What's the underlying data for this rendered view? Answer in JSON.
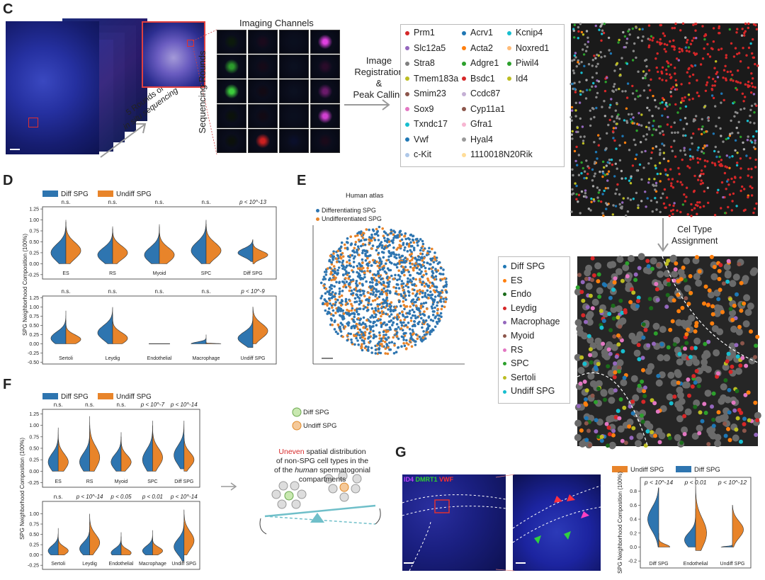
{
  "panel_labels": {
    "c": "C",
    "d": "D",
    "e": "E",
    "f": "F",
    "g": "G"
  },
  "panel_c": {
    "imaging_title": "Imaging Channels",
    "seq_rounds": "Sequencing Rounds",
    "rounds_line1": "5 Rounds of",
    "rounds_line2": "in situ sequencing",
    "reg_line1": "Image",
    "reg_line2": "Registration",
    "reg_line3": "&",
    "reg_line4": "Peak Calling",
    "grid_colors": [
      [
        "#0c1a0c",
        "#1a0a1c",
        "#0a0f1e",
        "#e040e0"
      ],
      [
        "#2c9a2c",
        "#150a18",
        "#0b1020",
        "#2a0c2a"
      ],
      [
        "#3ccc3c",
        "#120a14",
        "#0b1020",
        "#6a1a6a"
      ],
      [
        "#0b120b",
        "#120a14",
        "#0a0f1e",
        "#d040d0"
      ],
      [
        "#0b100b",
        "#cc2020",
        "#0a0f2a",
        "#1a0a1a"
      ]
    ],
    "genes_col1": [
      {
        "name": "Prm1",
        "color": "#d62728"
      },
      {
        "name": "Slc12a5",
        "color": "#9467bd"
      },
      {
        "name": "Stra8",
        "color": "#7f7f7f"
      },
      {
        "name": "Tmem183a",
        "color": "#bcbd22"
      },
      {
        "name": "Smim23",
        "color": "#8c564b"
      },
      {
        "name": "Sox9",
        "color": "#e377c2"
      },
      {
        "name": "Txndc17",
        "color": "#17becf"
      },
      {
        "name": "Vwf",
        "color": "#1f77b4"
      },
      {
        "name": "c-Kit",
        "color": "#aec7e8"
      }
    ],
    "genes_col2": [
      {
        "name": "Acrv1",
        "color": "#1f77b4"
      },
      {
        "name": "Acta2",
        "color": "#ff7f0e"
      },
      {
        "name": "Adgre1",
        "color": "#2ca02c"
      },
      {
        "name": "Bsdc1",
        "color": "#d62728"
      },
      {
        "name": "Ccdc87",
        "color": "#c5b0d5"
      },
      {
        "name": "Cyp11a1",
        "color": "#8c564b"
      },
      {
        "name": "Gfra1",
        "color": "#f7b6d2"
      },
      {
        "name": "Hyal4",
        "color": "#999999"
      },
      {
        "name": "1110018N20Rik",
        "color": "#ffdd99"
      }
    ],
    "genes_col3": [
      {
        "name": "Kcnip4",
        "color": "#17becf"
      },
      {
        "name": "Noxred1",
        "color": "#ffbb78"
      },
      {
        "name": "Piwil4",
        "color": "#2ca02c"
      },
      {
        "name": "Id4",
        "color": "#bcbd22"
      }
    ],
    "celltype_step1": "Cel Type",
    "celltype_step2": "Assignment",
    "celltypes": [
      {
        "name": "Diff SPG",
        "color": "#1f77b4"
      },
      {
        "name": "ES",
        "color": "#ff7f0e"
      },
      {
        "name": "Endo",
        "color": "#1a6b1a"
      },
      {
        "name": "Leydig",
        "color": "#d62728"
      },
      {
        "name": "Macrophage",
        "color": "#9467bd"
      },
      {
        "name": "Myoid",
        "color": "#8c564b"
      },
      {
        "name": "RS",
        "color": "#e377c2"
      },
      {
        "name": "SPC",
        "color": "#2ca02c"
      },
      {
        "name": "Sertoli",
        "color": "#bcbd22"
      },
      {
        "name": "Undiff SPG",
        "color": "#17becf"
      }
    ]
  },
  "colors": {
    "diff": "#2e75b0",
    "undiff": "#e8842a"
  },
  "panel_d": {
    "legend_diff": "Diff SPG",
    "legend_undiff": "Undiff SPG",
    "ylabel": "SPG Neighborhood Composition (100%)",
    "top_row": [
      {
        "cat": "ES",
        "p": "n.s.",
        "diff": [
          0.0,
          1.0,
          0.25
        ],
        "undiff": [
          0.0,
          0.95,
          0.3
        ]
      },
      {
        "cat": "RS",
        "p": "n.s.",
        "diff": [
          0.0,
          0.85,
          0.2
        ],
        "undiff": [
          0.0,
          0.8,
          0.25
        ]
      },
      {
        "cat": "Myoid",
        "p": "n.s.",
        "diff": [
          0.0,
          0.9,
          0.2
        ],
        "undiff": [
          0.0,
          0.85,
          0.2
        ]
      },
      {
        "cat": "SPC",
        "p": "n.s.",
        "diff": [
          0.0,
          1.0,
          0.3
        ],
        "undiff": [
          0.0,
          0.9,
          0.3
        ]
      },
      {
        "cat": "Diff SPG",
        "p": "p < 10^-13",
        "diff": [
          0.05,
          0.55,
          0.25
        ],
        "undiff": [
          0.0,
          0.45,
          0.2
        ]
      }
    ],
    "bottom_row": [
      {
        "cat": "Sertoli",
        "p": "n.s.",
        "diff": [
          0.0,
          0.9,
          0.15
        ],
        "undiff": [
          0.0,
          0.65,
          0.12
        ]
      },
      {
        "cat": "Leydig",
        "p": "n.s.",
        "diff": [
          0.0,
          1.0,
          0.3
        ],
        "undiff": [
          0.0,
          0.8,
          0.15
        ]
      },
      {
        "cat": "Endothelial",
        "p": "n.s.",
        "diff": [
          0.05,
          0.05,
          0.0
        ],
        "undiff": [
          0.05,
          0.05,
          0.0
        ]
      },
      {
        "cat": "Macrophage",
        "p": "n.s.",
        "diff": [
          0.0,
          0.25,
          0.0
        ],
        "undiff": [
          0.0,
          0.05,
          0.0
        ]
      },
      {
        "cat": "Undiff SPG",
        "p": "p < 10^-9",
        "diff": [
          -0.1,
          0.75,
          0.15
        ],
        "undiff": [
          0.0,
          1.0,
          0.35
        ]
      }
    ],
    "yticks_top": [
      "1.25",
      "1.00",
      "0.75",
      "0.50",
      "0.25",
      "0.00",
      "-0.25"
    ],
    "yticks_bot": [
      "1.25",
      "1.00",
      "0.75",
      "0.50",
      "0.25",
      "0.00",
      "-0.25",
      "-0.50"
    ]
  },
  "panel_e": {
    "title": "Human atlas",
    "legend_diff": "Differentiating SPG",
    "legend_undiff": "Undifferentiated SPG"
  },
  "panel_f": {
    "legend_diff": "Diff SPG",
    "legend_undiff": "Undiff SPG",
    "ylabel": "SPG Neighborhood Composition (100%)",
    "top_row": [
      {
        "cat": "ES",
        "p": "n.s.",
        "diff": [
          0.0,
          0.95,
          0.2
        ],
        "undiff": [
          0.0,
          0.9,
          0.2
        ]
      },
      {
        "cat": "RS",
        "p": "n.s.",
        "diff": [
          0.0,
          1.0,
          0.2
        ],
        "undiff": [
          0.0,
          1.2,
          0.3
        ]
      },
      {
        "cat": "Myoid",
        "p": "n.s.",
        "diff": [
          0.0,
          0.85,
          0.2
        ],
        "undiff": [
          0.0,
          0.75,
          0.2
        ]
      },
      {
        "cat": "SPC",
        "p": "p < 10^-7",
        "diff": [
          0.0,
          1.1,
          0.25
        ],
        "undiff": [
          0.0,
          1.0,
          0.3
        ]
      },
      {
        "cat": "Diff SPG",
        "p": "p < 10^-14",
        "diff": [
          0.05,
          1.1,
          0.35
        ],
        "undiff": [
          0.0,
          0.8,
          0.25
        ]
      }
    ],
    "bottom_row": [
      {
        "cat": "Sertoli",
        "p": "n.s.",
        "diff": [
          0.0,
          0.65,
          0.1
        ],
        "undiff": [
          0.0,
          0.5,
          0.1
        ]
      },
      {
        "cat": "Leydig",
        "p": "p < 10^-14",
        "diff": [
          0.0,
          0.8,
          0.15
        ],
        "undiff": [
          0.0,
          1.0,
          0.3
        ]
      },
      {
        "cat": "Endothelial",
        "p": "p < 0.05",
        "diff": [
          0.0,
          0.55,
          0.05
        ],
        "undiff": [
          0.0,
          0.45,
          0.05
        ]
      },
      {
        "cat": "Macrophage",
        "p": "p < 0.01",
        "diff": [
          0.0,
          0.6,
          0.1
        ],
        "undiff": [
          0.0,
          0.45,
          0.1
        ]
      },
      {
        "cat": "Undiff SPG",
        "p": "p < 10^-14",
        "diff": [
          -0.15,
          0.8,
          0.2
        ],
        "undiff": [
          0.0,
          1.1,
          0.35
        ]
      }
    ],
    "yticks_top": [
      "1.25",
      "1.00",
      "0.75",
      "0.50",
      "0.25",
      "0.00",
      "-0.25"
    ],
    "yticks_bot": [
      "1.00",
      "0.75",
      "0.50",
      "0.25",
      "0.00",
      "-0.25"
    ],
    "schematic_diff": "Diff  SPG",
    "schematic_undiff": "Undiff  SPG",
    "uneven": "Uneven",
    "desc_line1_rest": " spatial distribution",
    "desc_line2": "of non-SPG cell types in the",
    "desc_line3_human": "human",
    "desc_line3_rest": " spermatogonial compartments"
  },
  "panel_g": {
    "stain_id4": "ID4",
    "stain_dmrt1": "DMRT1",
    "stain_vwf": "VWF",
    "legend_undiff": "Undiff SPG",
    "legend_diff": "Diff SPG",
    "ylabel": "SPG Neighborhood Composition (100%)",
    "yticks": [
      "0.8",
      "0.6",
      "0.4",
      "0.2",
      "0.0",
      "-0.2"
    ],
    "violins": [
      {
        "cat": "Diff SPG",
        "p": "p < 10^-14",
        "diff": [
          0.0,
          0.85,
          0.4
        ],
        "undiff": [
          0.0,
          0.2,
          0.0
        ]
      },
      {
        "cat": "Endothelial",
        "p": "p < 0.01",
        "diff": [
          0.0,
          0.55,
          0.1
        ],
        "undiff": [
          -0.05,
          1.0,
          0.2
        ]
      },
      {
        "cat": "Undiff SPG",
        "p": "p < 10^-12",
        "diff": [
          0.0,
          0.05,
          0.0
        ],
        "undiff": [
          0.0,
          0.6,
          0.25
        ]
      }
    ]
  }
}
